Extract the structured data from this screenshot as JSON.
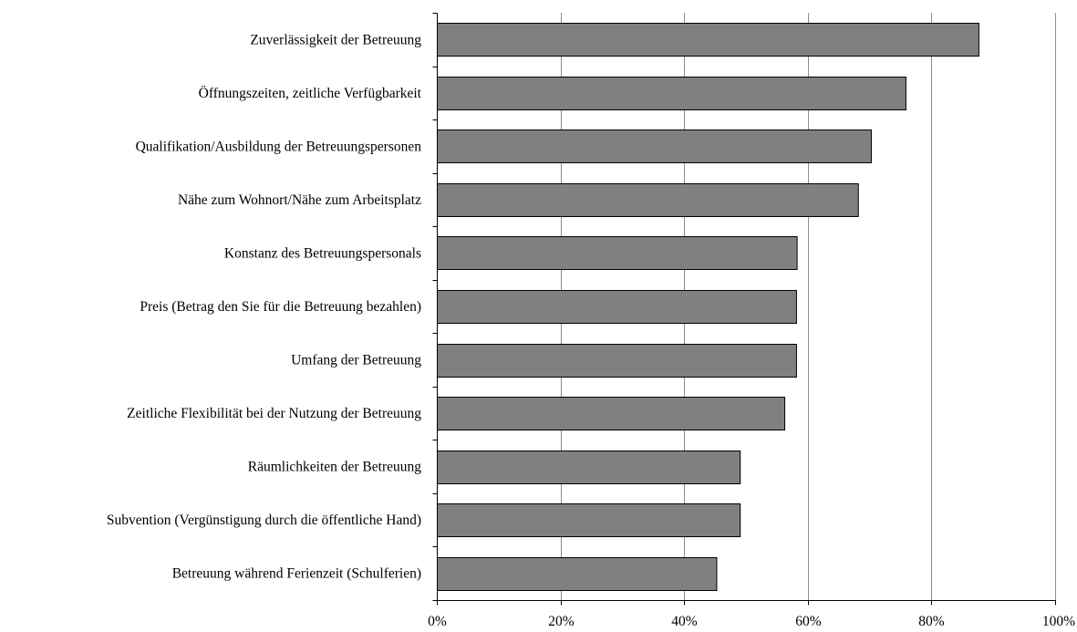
{
  "chart_data": {
    "type": "bar",
    "orientation": "horizontal",
    "title": "",
    "xlabel": "",
    "ylabel": "",
    "xlim": [
      0,
      100
    ],
    "x_ticks": [
      "0%",
      "20%",
      "40%",
      "60%",
      "80%",
      "100%"
    ],
    "x_tick_values": [
      0,
      20,
      40,
      60,
      80,
      100
    ],
    "grid": "vertical",
    "bar_color": "#808080",
    "categories": [
      "Zuverlässigkeit der Betreuung",
      "Öffnungszeiten, zeitliche Verfügbarkeit",
      "Qualifikation/Ausbildung der Betreuungspersonen",
      "Nähe zum Wohnort/Nähe zum Arbeitsplatz",
      "Konstanz des Betreuungspersonals",
      "Preis (Betrag den Sie für die Betreuung bezahlen)",
      "Umfang der Betreuung",
      "Zeitliche Flexibilität bei der Nutzung der Betreuung",
      "Räumlichkeiten der Betreuung",
      "Subvention (Vergünstigung durch die öffentliche Hand)",
      "Betreuung während Ferienzeit (Schulferien)"
    ],
    "values": [
      87.6,
      75.8,
      70.2,
      68.1,
      58.2,
      58.1,
      58.1,
      56.2,
      49.0,
      49.0,
      45.2
    ]
  }
}
